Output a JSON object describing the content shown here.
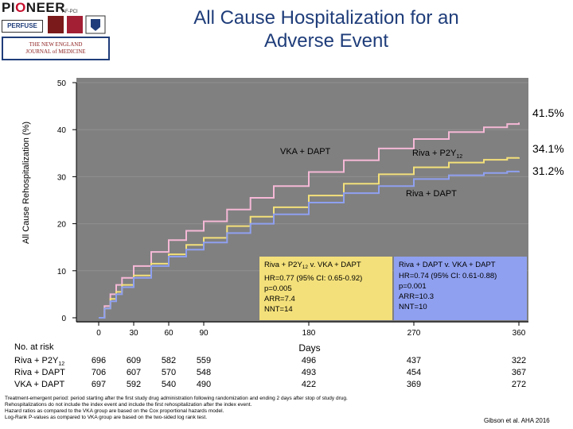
{
  "logos": {
    "pioneer_af_pci": "PIONEER AF-PCI",
    "perfuse": "PERFUSE",
    "nejm": "THE NEW ENGLAND JOURNAL of MEDICINE"
  },
  "title": {
    "line1": "All Cause Hospitalization for an",
    "line2": "Adverse Event"
  },
  "chart_data": {
    "type": "line",
    "xlabel": "Days",
    "ylabel": "All Cause Rehospitalization (%)",
    "xlim": [
      0,
      360
    ],
    "ylim": [
      0,
      50
    ],
    "x_ticks": [
      0,
      30,
      60,
      90,
      180,
      270,
      360
    ],
    "x_tick_labels": [
      "0",
      "30",
      "60",
      "90",
      "180",
      "270",
      "360"
    ],
    "y_ticks": [
      0,
      10,
      20,
      30,
      40,
      50
    ],
    "y_tick_labels": [
      "0",
      "10",
      "20",
      "30",
      "40",
      "50"
    ],
    "colors": {
      "plot_bg": "#808080",
      "vka_dapt": "#f5b8d6",
      "riva_p2y12": "#f3e07a",
      "riva_dapt": "#8fa0f0",
      "title": "#1f3d7a"
    },
    "series": [
      {
        "name": "VKA + DAPT",
        "key": "vka",
        "color": "#f5b8d6",
        "x": [
          0,
          5,
          10,
          15,
          20,
          30,
          45,
          60,
          75,
          90,
          110,
          130,
          150,
          180,
          210,
          240,
          270,
          300,
          330,
          350,
          360
        ],
        "y": [
          0,
          2.5,
          5,
          7,
          8.5,
          11,
          14,
          16.5,
          18.5,
          20.5,
          23,
          25.5,
          28,
          31,
          33.5,
          36,
          38,
          39.5,
          40.5,
          41.2,
          41.5
        ]
      },
      {
        "name": "Riva + P2Y12",
        "key": "p2y12",
        "color": "#f3e07a",
        "x": [
          0,
          5,
          10,
          15,
          20,
          30,
          45,
          60,
          75,
          90,
          110,
          130,
          150,
          180,
          210,
          240,
          270,
          300,
          330,
          350,
          360
        ],
        "y": [
          0,
          2,
          4,
          5.5,
          7,
          9,
          11.5,
          13.5,
          15.5,
          17,
          19.5,
          21.5,
          23.5,
          26,
          28.5,
          30.5,
          32,
          33,
          33.6,
          34,
          34.1
        ]
      },
      {
        "name": "Riva + DAPT",
        "key": "rdapt",
        "color": "#8fa0f0",
        "x": [
          0,
          5,
          10,
          15,
          20,
          30,
          45,
          60,
          75,
          90,
          110,
          130,
          150,
          180,
          210,
          240,
          270,
          300,
          330,
          350,
          360
        ],
        "y": [
          0,
          2,
          3.5,
          5,
          6.5,
          8.5,
          11,
          13,
          14.5,
          16,
          18,
          20,
          22,
          24.5,
          26.5,
          28,
          29.5,
          30.3,
          30.8,
          31.1,
          31.2
        ]
      }
    ],
    "end_labels": {
      "vka": "41.5%",
      "p2y12": "34.1%",
      "rdapt": "31.2%"
    },
    "annotations": {
      "vka_label": "VKA + DAPT",
      "p2y12_label_main": "Riva + P2Y",
      "p2y12_label_sub": "12",
      "rdapt_label": "Riva + DAPT"
    },
    "stat_box_left": {
      "title_main": "Riva + P2Y",
      "title_sub": "12",
      "title_rest": " v. VKA + DAPT",
      "hr": "HR=0.77 (95% CI: 0.65-0.92)",
      "p": "p=0.005",
      "arr": "ARR=7.4",
      "nnt": "NNT=14",
      "color": "#f3e07a"
    },
    "stat_box_right": {
      "title": "Riva + DAPT v. VKA + DAPT",
      "hr": "HR=0.74 (95% CI: 0.61-0.88)",
      "p": "p=0.001",
      "arr": "ARR=10.3",
      "nnt": "NNT=10",
      "color": "#8fa0f0"
    }
  },
  "risk_table": {
    "header": "No. at risk",
    "rows": [
      {
        "label_main": "Riva + P2Y",
        "label_sub": "12",
        "values": [
          "696",
          "609",
          "582",
          "559",
          "496",
          "437",
          "322"
        ]
      },
      {
        "label_main": "Riva + DAPT",
        "label_sub": "",
        "values": [
          "706",
          "607",
          "570",
          "548",
          "493",
          "454",
          "367"
        ]
      },
      {
        "label_main": "VKA + DAPT",
        "label_sub": "",
        "values": [
          "697",
          "592",
          "540",
          "490",
          "422",
          "369",
          "272"
        ]
      }
    ]
  },
  "footnote": {
    "line1": "Treatment-emergent period: period starting after the first study drug administration following randomization and ending 2 days after stop of study drug.",
    "line2": "Rehospitalizations do not include the index event and include the first rehospitalization after the index event.",
    "line3": "Hazard ratios as compared to the VKA group are based on the Cox proportional hazards model.",
    "line4": "Log-Rank P-values as compared to VKA group are based on the two-sided log rank test."
  },
  "citation": "Gibson et al. AHA 2016"
}
